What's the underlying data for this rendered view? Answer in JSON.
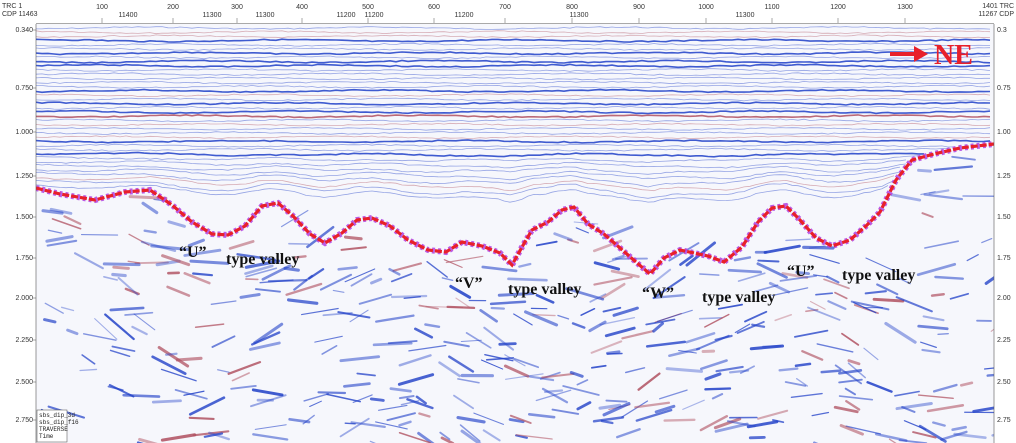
{
  "header": {
    "row1_left": "TRC 1",
    "row2_left": "CDP 11463",
    "row1_right": "1401 TRC",
    "row2_right": "11267 CDP",
    "trc_ticks": [
      "100",
      "200",
      "300",
      "400",
      "500",
      "600",
      "700",
      "800",
      "900",
      "1000",
      "1100",
      "1200",
      "1300"
    ],
    "cdp_ticks": [
      "11400",
      "11300",
      "11300",
      "11200",
      "11200",
      "11200",
      "11300",
      "11300"
    ]
  },
  "time_axis": {
    "left_labels": [
      "0.340",
      "0.750",
      "1.000",
      "1.250",
      "1.500",
      "1.750",
      "2.000",
      "2.250",
      "2.500",
      "2.750"
    ],
    "right_labels": [
      "0.3",
      "0.75",
      "1.00",
      "1.25",
      "1.50",
      "1.75",
      "2.00",
      "2.25",
      "2.50",
      "2.75"
    ]
  },
  "direction": {
    "label": "NE",
    "arrow_color": "#e8202a"
  },
  "annotations": {
    "u_valley_1": {
      "mark": "“U”",
      "text": "type valley"
    },
    "v_valley": {
      "mark": "“V”",
      "text": "type valley"
    },
    "w_valley": {
      "mark": "“W”",
      "text": "type valley"
    },
    "u_valley_2": {
      "mark": "“U”",
      "text": "type valley"
    }
  },
  "legend": {
    "line1": "sbs_dip_3d",
    "line2": "sbs_dip_f16",
    "line3": "TRAVERSE",
    "line4": "Time"
  },
  "colors": {
    "horizon": "#e8202a",
    "horizon_halo": "#b040e0",
    "seismic_positive": "#1f3fc8",
    "seismic_negative": "#b05060",
    "background": "#ffffff"
  }
}
